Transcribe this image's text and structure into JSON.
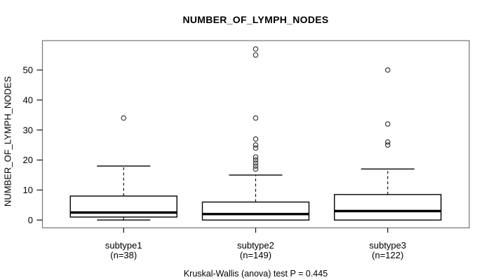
{
  "chart_data": {
    "type": "boxplot",
    "title": "NUMBER_OF_LYMPH_NODES",
    "ylabel": "NUMBER_OF_LYMPH_NODES",
    "xlabel": "",
    "caption": "Kruskal-Wallis (anova) test P = 0.445",
    "y_ticks": [
      0,
      10,
      20,
      30,
      40,
      50
    ],
    "ylim": [
      -2.6,
      59.8
    ],
    "grid": false,
    "legend": "none",
    "groups": [
      {
        "label": "subtype1",
        "sublabel": "(n=38)",
        "n": 38,
        "whisker_low": 0,
        "q1": 1,
        "median": 2.5,
        "q3": 8,
        "whisker_high": 18,
        "outliers": [
          34
        ]
      },
      {
        "label": "subtype2",
        "sublabel": "(n=149)",
        "n": 149,
        "whisker_low": 0,
        "q1": 0,
        "median": 2,
        "q3": 6,
        "whisker_high": 15,
        "outliers": [
          17,
          18,
          19,
          20,
          21,
          24,
          25,
          27,
          34,
          55,
          57
        ]
      },
      {
        "label": "subtype3",
        "sublabel": "(n=122)",
        "n": 122,
        "whisker_low": 0,
        "q1": 0,
        "median": 3,
        "q3": 8.5,
        "whisker_high": 17,
        "outliers": [
          25,
          26,
          32,
          50
        ]
      }
    ],
    "colors": {
      "box_fill": "#ffffff",
      "box_stroke": "#000000",
      "median": "#000000",
      "whisker": "#000000",
      "outlier_stroke": "#2b2b2b",
      "frame": "#757575",
      "tick": "#111111",
      "text": "#000000"
    }
  }
}
